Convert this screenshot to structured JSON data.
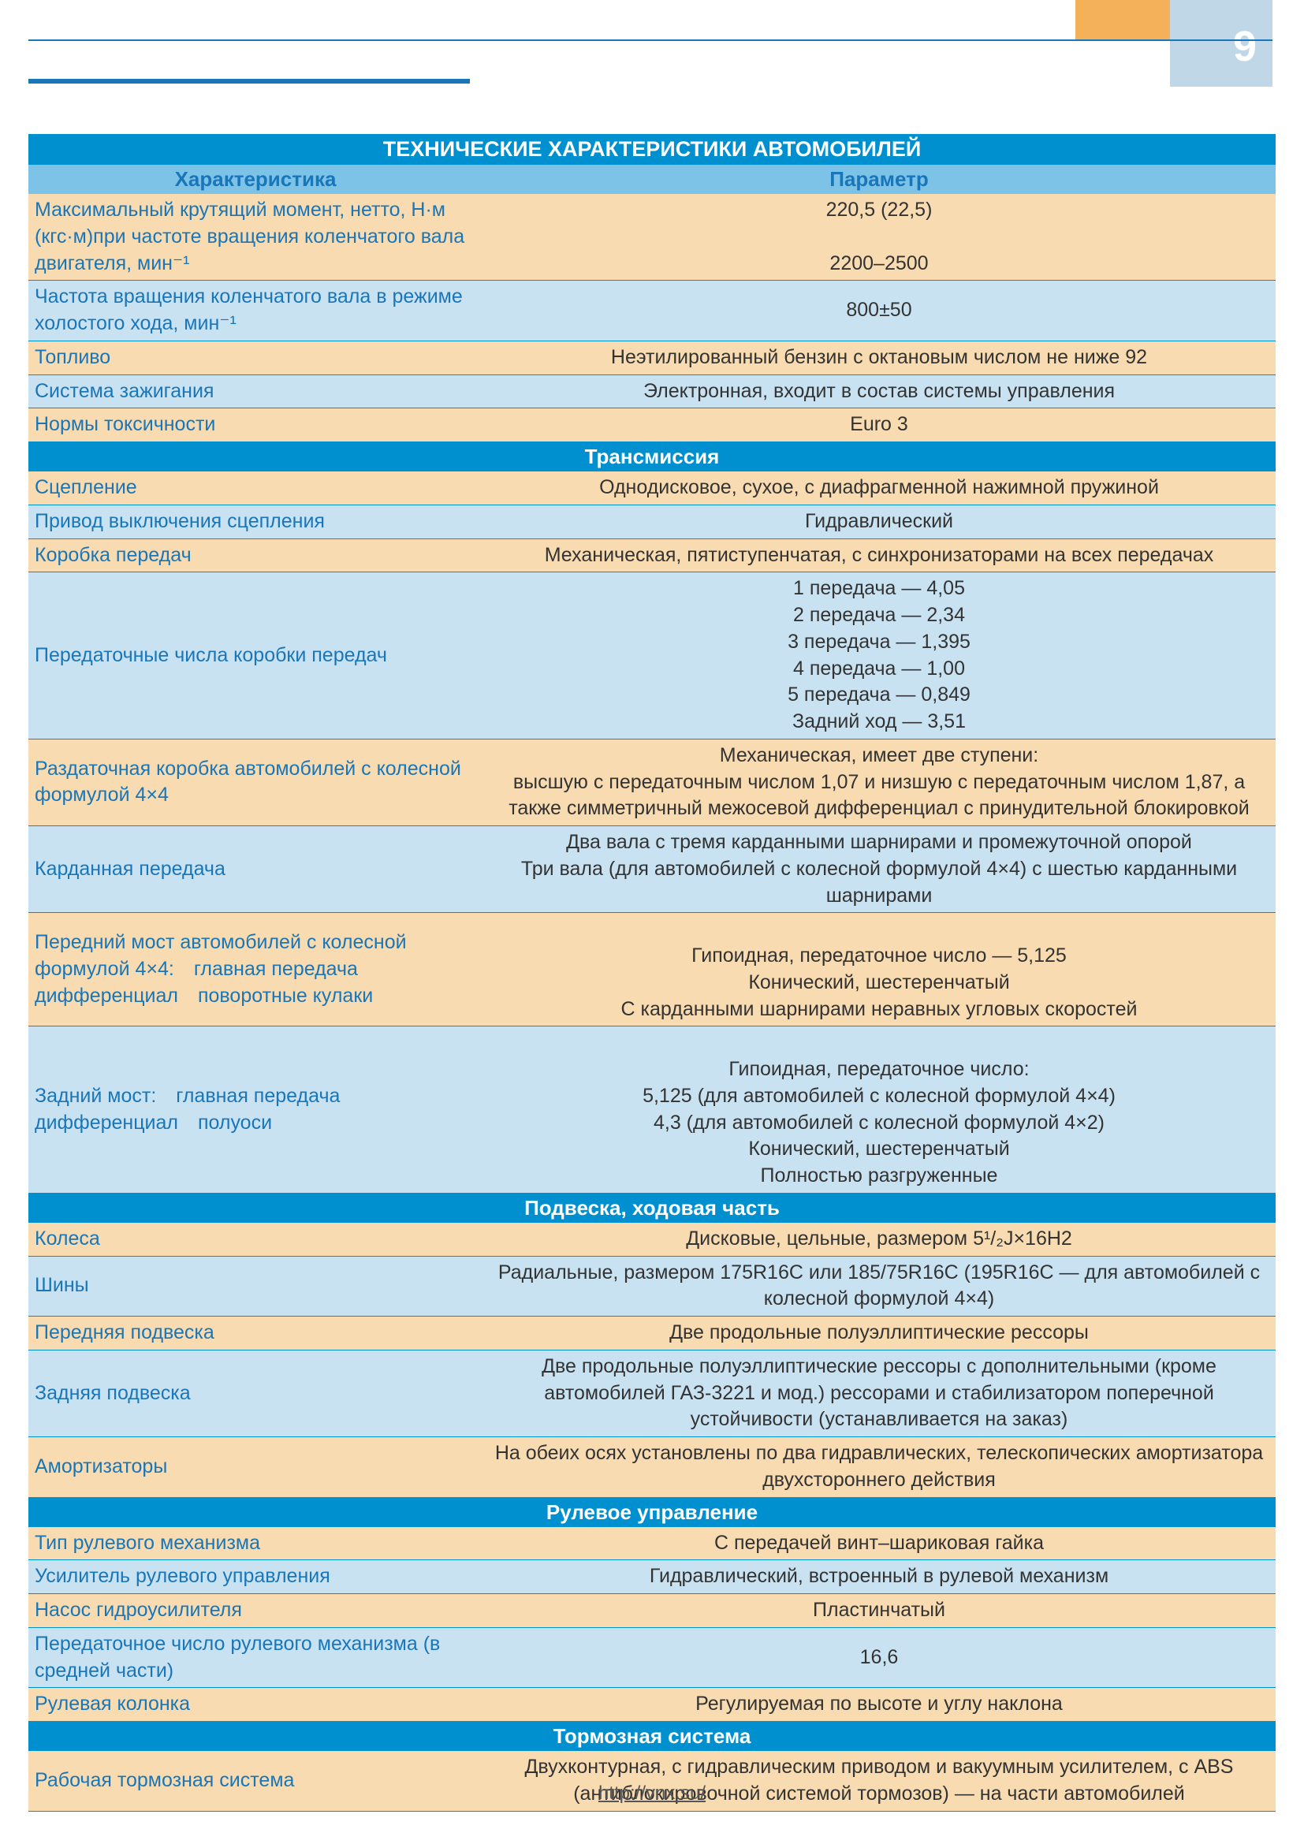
{
  "page_number": "9",
  "footer_url": "http://vnx.su/",
  "colors": {
    "title_bg": "#0090d0",
    "header_bg": "#7dc3e8",
    "row_blue": "#c9e2f2",
    "row_orange": "#f8dbb0",
    "label_color": "#1976b8",
    "border": "#0090d0",
    "page_accent_orange": "#f5b05a",
    "page_accent_blue": "#c0d7e8"
  },
  "table": {
    "title": "ТЕХНИЧЕСКИЕ ХАРАКТЕРИСТИКИ АВТОМОБИЛЕЙ",
    "col1": "Характеристика",
    "col2": "Параметр",
    "sections": [
      {
        "title": null,
        "rows": [
          {
            "color": "orange",
            "label": "Максимальный крутящий момент, нетто, Н·м (кгс·м)\nпри частоте вращения коленчатого вала двигателя, мин⁻¹",
            "value": "220,5 (22,5)\n\n2200–2500"
          },
          {
            "color": "blue",
            "label": "Частота вращения коленчатого вала в режиме холостого хода, мин⁻¹",
            "value": "800±50"
          },
          {
            "color": "orange",
            "label": "Топливо",
            "value": "Неэтилированный бензин с октановым числом не ниже 92"
          },
          {
            "color": "blue",
            "label": "Система зажигания",
            "value": "Электронная, входит в состав системы управления"
          },
          {
            "color": "orange",
            "label": "Нормы токсичности",
            "value": "Euro 3"
          }
        ]
      },
      {
        "title": "Трансмиссия",
        "rows": [
          {
            "color": "orange",
            "label": "Сцепление",
            "value": "Однодисковое, сухое, с диафрагменной нажимной пружиной"
          },
          {
            "color": "blue",
            "label": "Привод выключения сцепления",
            "value": "Гидравлический"
          },
          {
            "color": "orange",
            "label": "Коробка передач",
            "value": "Механическая, пятиступенчатая, с синхронизаторами на всех передачах"
          },
          {
            "color": "blue",
            "label": "Передаточные числа коробки передач",
            "value": "1 передача — 4,05\n2 передача — 2,34\n3 передача — 1,395\n4 передача — 1,00\n5 передача — 0,849\nЗадний ход — 3,51"
          },
          {
            "color": "orange",
            "label": "Раздаточная коробка автомобилей с колесной формулой 4×4",
            "value": "Механическая, имеет две ступени:\nвысшую с передаточным числом 1,07 и низшую с передаточным числом 1,87, а также симметричный межосевой дифференциал с принудительной блокировкой"
          },
          {
            "color": "blue",
            "label": "Карданная передача",
            "value": "Два вала с тремя карданными шарнирами и промежуточной опорой\nТри вала (для автомобилей с колесной формулой 4×4) с шестью карданными шарнирами"
          },
          {
            "color": "orange",
            "label": "Передний мост автомобилей с колесной формулой 4×4:\n главная передача\n дифференциал\n поворотные кулаки",
            "value": "\nГипоидная, передаточное число — 5,125\nКонический, шестеренчатый\nС карданными шарнирами неравных угловых скоростей"
          },
          {
            "color": "blue",
            "label": "Задний мост:\n главная передача\n\n\n дифференциал\n полуоси",
            "value": "\nГипоидная, передаточное число:\n5,125 (для автомобилей с колесной формулой 4×4)\n4,3 (для автомобилей с колесной формулой 4×2)\nКонический, шестеренчатый\nПолностью разгруженные"
          }
        ]
      },
      {
        "title": "Подвеска, ходовая часть",
        "rows": [
          {
            "color": "orange",
            "label": "Колеса",
            "value": "Дисковые, цельные, размером 5¹/₂J×16H2"
          },
          {
            "color": "blue",
            "label": "Шины",
            "value": "Радиальные, размером 175R16C или 185/75R16C (195R16C — для автомобилей с колесной формулой 4×4)"
          },
          {
            "color": "orange",
            "label": "Передняя подвеска",
            "value": "Две продольные полуэллиптические рессоры"
          },
          {
            "color": "blue",
            "label": "Задняя подвеска",
            "value": "Две продольные полуэллиптические рессоры с дополнительными (кроме автомобилей ГАЗ-3221 и мод.) рессорами и стабилизатором поперечной устойчивости (устанавливается на заказ)"
          },
          {
            "color": "orange",
            "label": "Амортизаторы",
            "value": "На обеих осях установлены по два гидравлических, телескопических амортизатора двухстороннего действия"
          }
        ]
      },
      {
        "title": "Рулевое управление",
        "rows": [
          {
            "color": "orange",
            "label": "Тип рулевого механизма",
            "value": "С передачей винт–шариковая гайка"
          },
          {
            "color": "blue",
            "label": "Усилитель рулевого управления",
            "value": "Гидравлический, встроенный в рулевой механизм"
          },
          {
            "color": "orange",
            "label": "Насос гидроусилителя",
            "value": "Пластинчатый"
          },
          {
            "color": "blue",
            "label": "Передаточное число рулевого механизма (в средней части)",
            "value": "16,6"
          },
          {
            "color": "orange",
            "label": "Рулевая колонка",
            "value": "Регулируемая по высоте и углу наклона"
          }
        ]
      },
      {
        "title": "Тормозная система",
        "rows": [
          {
            "color": "orange",
            "label": "Рабочая тормозная система",
            "value": "Двухконтурная, с гидравлическим приводом и вакуумным усилителем, с ABS (антиблокировочной системой тормозов) — на части автомобилей"
          }
        ]
      }
    ]
  }
}
